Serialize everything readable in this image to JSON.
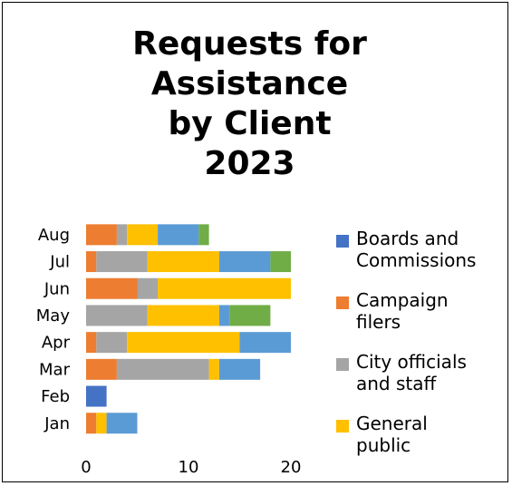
{
  "chart_data": {
    "type": "bar",
    "orientation": "horizontal",
    "stacked": true,
    "title_lines": [
      "Requests for",
      "Assistance",
      "by Client",
      "2023"
    ],
    "categories": [
      "Jan",
      "Feb",
      "Mar",
      "Apr",
      "May",
      "Jun",
      "Jul",
      "Aug"
    ],
    "x_ticks": [
      "0",
      "10",
      "20"
    ],
    "xlim": [
      0,
      20
    ],
    "grid": false,
    "legend_position": "right",
    "series": [
      {
        "name": "Boards and Commissions",
        "color": "#4472C4",
        "values": [
          0,
          2,
          0,
          0,
          0,
          0,
          0,
          0
        ]
      },
      {
        "name": "Campaign filers",
        "color": "#ED7D31",
        "values": [
          1,
          0,
          3,
          1,
          0,
          5,
          1,
          3
        ]
      },
      {
        "name": "City officials and staff",
        "color": "#A5A5A5",
        "values": [
          0,
          0,
          9,
          3,
          6,
          2,
          5,
          1
        ]
      },
      {
        "name": "General public",
        "color": "#FFC000",
        "values": [
          1,
          0,
          1,
          11,
          7,
          13,
          7,
          3
        ]
      },
      {
        "name": "",
        "color": "#5B9BD5",
        "values": [
          3,
          0,
          4,
          5,
          1,
          0,
          5,
          4
        ]
      },
      {
        "name": "",
        "color": "#70AD47",
        "values": [
          0,
          0,
          0,
          0,
          4,
          0,
          2,
          1
        ]
      }
    ],
    "legend_lines": [
      [
        "Boards and",
        "Commissions"
      ],
      [
        "Campaign",
        "filers"
      ],
      [
        "City officials",
        "and staff"
      ],
      [
        "General",
        "public"
      ]
    ]
  }
}
